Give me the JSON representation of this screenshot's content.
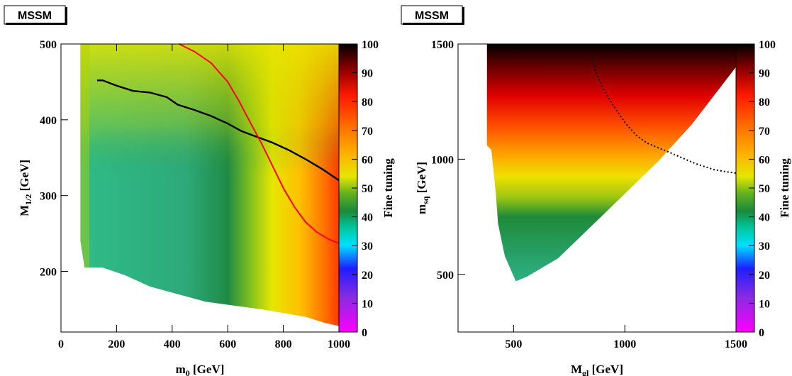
{
  "chart_data": [
    {
      "type": "heatmap",
      "tag": "MSSM",
      "xlabel": "m",
      "xlabel_sub": "0",
      "xlabel_unit": " [GeV]",
      "ylabel": "M",
      "ylabel_sub": "1/2",
      "ylabel_unit": " [GeV]",
      "xlim": [
        0,
        1000
      ],
      "ylim": [
        120,
        500
      ],
      "xticks": [
        0,
        200,
        400,
        600,
        800,
        1000
      ],
      "yticks": [
        200,
        300,
        400,
        500
      ],
      "colorbar_label": "Fine tuning",
      "colorbar_range": [
        0,
        100
      ],
      "colorbar_ticks": [
        0,
        10,
        20,
        30,
        40,
        50,
        60,
        70,
        80,
        90,
        100
      ],
      "region_boundary": [
        [
          70,
          500
        ],
        [
          70,
          240
        ],
        [
          85,
          205
        ],
        [
          150,
          205
        ],
        [
          230,
          195
        ],
        [
          320,
          180
        ],
        [
          420,
          170
        ],
        [
          520,
          160
        ],
        [
          620,
          155
        ],
        [
          720,
          150
        ],
        [
          800,
          145
        ],
        [
          880,
          140
        ],
        [
          950,
          132
        ],
        [
          1000,
          128
        ],
        [
          1000,
          500
        ]
      ],
      "black_curve": [
        [
          130,
          452
        ],
        [
          150,
          452
        ],
        [
          200,
          445
        ],
        [
          260,
          438
        ],
        [
          320,
          436
        ],
        [
          380,
          430
        ],
        [
          420,
          420
        ],
        [
          480,
          413
        ],
        [
          540,
          405
        ],
        [
          600,
          395
        ],
        [
          650,
          385
        ],
        [
          700,
          378
        ],
        [
          760,
          370
        ],
        [
          820,
          360
        ],
        [
          880,
          348
        ],
        [
          940,
          335
        ],
        [
          1000,
          320
        ]
      ],
      "red_curve": [
        [
          425,
          500
        ],
        [
          480,
          490
        ],
        [
          540,
          475
        ],
        [
          600,
          450
        ],
        [
          640,
          425
        ],
        [
          680,
          397
        ],
        [
          720,
          370
        ],
        [
          760,
          340
        ],
        [
          800,
          310
        ],
        [
          840,
          285
        ],
        [
          880,
          265
        ],
        [
          920,
          252
        ],
        [
          960,
          243
        ],
        [
          1000,
          237
        ]
      ]
    },
    {
      "type": "heatmap",
      "tag": "MSSM",
      "xlabel": "M",
      "xlabel_sub": "gl",
      "xlabel_unit": " [GeV]",
      "ylabel": "m",
      "ylabel_sub": "sq",
      "ylabel_unit": " [GeV]",
      "xlim": [
        250,
        1500
      ],
      "ylim": [
        250,
        1500
      ],
      "xticks": [
        500,
        1000,
        1500
      ],
      "yticks": [
        500,
        1000,
        1500
      ],
      "colorbar_label": "Fine tuning",
      "colorbar_range": [
        0,
        100
      ],
      "colorbar_ticks": [
        0,
        10,
        20,
        30,
        40,
        50,
        60,
        70,
        80,
        90,
        100
      ],
      "region_boundary": [
        [
          380,
          1500
        ],
        [
          380,
          1060
        ],
        [
          400,
          1040
        ],
        [
          420,
          850
        ],
        [
          430,
          720
        ],
        [
          460,
          580
        ],
        [
          510,
          470
        ],
        [
          560,
          490
        ],
        [
          700,
          570
        ],
        [
          850,
          710
        ],
        [
          1000,
          850
        ],
        [
          1150,
          990
        ],
        [
          1300,
          1150
        ],
        [
          1420,
          1300
        ],
        [
          1500,
          1400
        ],
        [
          1500,
          1500
        ]
      ],
      "dotted_curve": [
        [
          850,
          1450
        ],
        [
          870,
          1380
        ],
        [
          900,
          1310
        ],
        [
          950,
          1230
        ],
        [
          1000,
          1160
        ],
        [
          1050,
          1105
        ],
        [
          1100,
          1070
        ],
        [
          1150,
          1050
        ],
        [
          1200,
          1030
        ],
        [
          1260,
          1005
        ],
        [
          1320,
          980
        ],
        [
          1400,
          955
        ],
        [
          1460,
          945
        ],
        [
          1500,
          940
        ]
      ]
    }
  ]
}
